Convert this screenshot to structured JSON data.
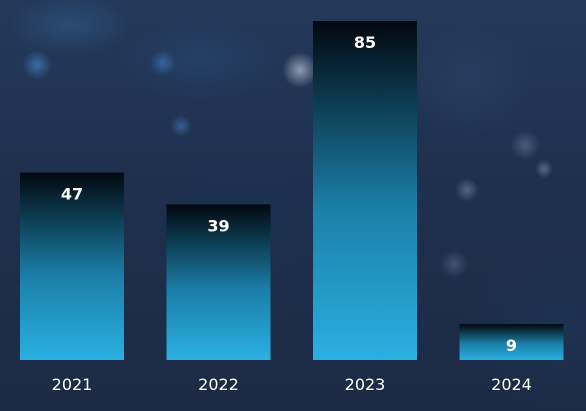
{
  "chart_data": {
    "type": "bar",
    "categories": [
      "2021",
      "2022",
      "2023",
      "2024"
    ],
    "values": [
      47,
      39,
      85,
      9
    ],
    "title": "",
    "xlabel": "",
    "ylabel": "",
    "ylim": [
      0,
      85
    ],
    "grid": false,
    "data_labels": true
  },
  "colors": {
    "bar_top": "#02080f",
    "bar_mid": "#1b7fa8",
    "bar_bottom": "#2ab0e1",
    "text": "#ffffff"
  }
}
